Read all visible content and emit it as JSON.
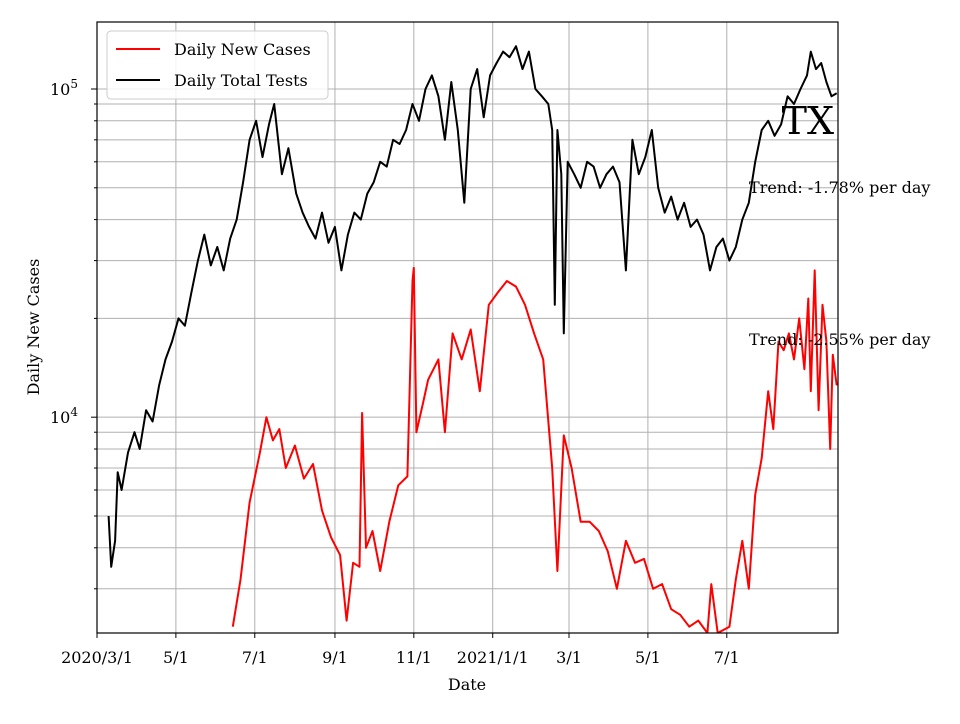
{
  "chart_data": {
    "type": "line",
    "title": "",
    "xlabel": "Date",
    "ylabel": "Daily New Cases",
    "yscale": "log",
    "ylim": [
      2200,
      160000
    ],
    "grid": true,
    "legend_position": "top-left",
    "plot_label": "TX",
    "x_ticks": [
      "2020/3/1",
      "5/1",
      "7/1",
      "9/1",
      "11/1",
      "2021/1/1",
      "3/1",
      "5/1",
      "7/1"
    ],
    "y_ticks": [
      {
        "value": 10000,
        "mantissa": "10",
        "exponent": "4"
      },
      {
        "value": 100000,
        "mantissa": "10",
        "exponent": "5"
      }
    ],
    "annotations": [
      "Trend: -1.78% per day",
      "Trend: -2.55% per day"
    ],
    "series": [
      {
        "name": "Daily New Cases",
        "color": "#ff0000",
        "points": [
          [
            "2020/6/14",
            2300
          ],
          [
            "2020/6/20",
            3200
          ],
          [
            "2020/6/27",
            5500
          ],
          [
            "2020/7/5",
            7800
          ],
          [
            "2020/7/10",
            10000
          ],
          [
            "2020/7/15",
            8500
          ],
          [
            "2020/7/20",
            9200
          ],
          [
            "2020/7/25",
            7000
          ],
          [
            "2020/8/1",
            8200
          ],
          [
            "2020/8/8",
            6500
          ],
          [
            "2020/8/15",
            7200
          ],
          [
            "2020/8/22",
            5200
          ],
          [
            "2020/8/29",
            4300
          ],
          [
            "2020/9/5",
            3800
          ],
          [
            "2020/9/10",
            2400
          ],
          [
            "2020/9/15",
            3600
          ],
          [
            "2020/9/20",
            3500
          ],
          [
            "2020/9/22",
            10300
          ],
          [
            "2020/9/25",
            4000
          ],
          [
            "2020/9/30",
            4500
          ],
          [
            "2020/10/6",
            3400
          ],
          [
            "2020/10/13",
            4800
          ],
          [
            "2020/10/20",
            6200
          ],
          [
            "2020/10/27",
            6600
          ],
          [
            "2020/10/31",
            26000
          ],
          [
            "2020/11/1",
            28500
          ],
          [
            "2020/11/3",
            9000
          ],
          [
            "2020/11/8",
            11000
          ],
          [
            "2020/11/12",
            13000
          ],
          [
            "2020/11/20",
            15000
          ],
          [
            "2020/11/25",
            9000
          ],
          [
            "2020/12/1",
            18000
          ],
          [
            "2020/12/8",
            15000
          ],
          [
            "2020/12/15",
            18500
          ],
          [
            "2020/12/22",
            12000
          ],
          [
            "2020/12/29",
            22000
          ],
          [
            "2021/1/5",
            24000
          ],
          [
            "2021/1/12",
            26000
          ],
          [
            "2021/1/19",
            25000
          ],
          [
            "2021/1/26",
            22000
          ],
          [
            "2021/2/2",
            18000
          ],
          [
            "2021/2/9",
            15000
          ],
          [
            "2021/2/16",
            7000
          ],
          [
            "2021/2/20",
            3400
          ],
          [
            "2021/2/25",
            8800
          ],
          [
            "2021/3/3",
            7000
          ],
          [
            "2021/3/10",
            4800
          ],
          [
            "2021/3/17",
            4800
          ],
          [
            "2021/3/24",
            4500
          ],
          [
            "2021/3/31",
            3900
          ],
          [
            "2021/4/7",
            3000
          ],
          [
            "2021/4/14",
            4200
          ],
          [
            "2021/4/21",
            3600
          ],
          [
            "2021/4/28",
            3700
          ],
          [
            "2021/5/5",
            3000
          ],
          [
            "2021/5/12",
            3100
          ],
          [
            "2021/5/19",
            2600
          ],
          [
            "2021/5/26",
            2500
          ],
          [
            "2021/6/2",
            2300
          ],
          [
            "2021/6/9",
            2400
          ],
          [
            "2021/6/16",
            2200
          ],
          [
            "2021/6/19",
            3100
          ],
          [
            "2021/6/24",
            2200
          ],
          [
            "2021/7/3",
            2300
          ],
          [
            "2021/7/8",
            3200
          ],
          [
            "2021/7/13",
            4200
          ],
          [
            "2021/7/18",
            3000
          ],
          [
            "2021/7/23",
            5800
          ],
          [
            "2021/7/28",
            7500
          ],
          [
            "2021/8/2",
            12000
          ],
          [
            "2021/8/6",
            9200
          ],
          [
            "2021/8/10",
            17000
          ],
          [
            "2021/8/14",
            16000
          ],
          [
            "2021/8/18",
            18000
          ],
          [
            "2021/8/22",
            15000
          ],
          [
            "2021/8/26",
            20000
          ],
          [
            "2021/8/30",
            14000
          ],
          [
            "2021/9/2",
            23000
          ],
          [
            "2021/9/4",
            12000
          ],
          [
            "2021/9/7",
            28000
          ],
          [
            "2021/9/10",
            10500
          ],
          [
            "2021/9/13",
            22000
          ],
          [
            "2021/9/16",
            17000
          ],
          [
            "2021/9/19",
            8000
          ],
          [
            "2021/9/21",
            15500
          ],
          [
            "2021/9/24",
            12500
          ]
        ]
      },
      {
        "name": "Daily Total Tests",
        "color": "#000000",
        "points": [
          [
            "2020/3/10",
            5000
          ],
          [
            "2020/3/12",
            3500
          ],
          [
            "2020/3/15",
            4200
          ],
          [
            "2020/3/17",
            6800
          ],
          [
            "2020/3/20",
            6000
          ],
          [
            "2020/3/25",
            7800
          ],
          [
            "2020/3/30",
            9000
          ],
          [
            "2020/4/3",
            8000
          ],
          [
            "2020/4/8",
            10500
          ],
          [
            "2020/4/13",
            9700
          ],
          [
            "2020/4/18",
            12500
          ],
          [
            "2020/4/23",
            15000
          ],
          [
            "2020/4/28",
            17000
          ],
          [
            "2020/5/3",
            20000
          ],
          [
            "2020/5/8",
            19000
          ],
          [
            "2020/5/13",
            24000
          ],
          [
            "2020/5/18",
            30000
          ],
          [
            "2020/5/23",
            36000
          ],
          [
            "2020/5/28",
            29000
          ],
          [
            "2020/6/2",
            33000
          ],
          [
            "2020/6/7",
            28000
          ],
          [
            "2020/6/12",
            35000
          ],
          [
            "2020/6/17",
            40000
          ],
          [
            "2020/6/22",
            52000
          ],
          [
            "2020/6/27",
            70000
          ],
          [
            "2020/7/2",
            80000
          ],
          [
            "2020/7/7",
            62000
          ],
          [
            "2020/7/12",
            78000
          ],
          [
            "2020/7/16",
            90000
          ],
          [
            "2020/7/22",
            55000
          ],
          [
            "2020/7/27",
            66000
          ],
          [
            "2020/8/2",
            48000
          ],
          [
            "2020/8/7",
            42000
          ],
          [
            "2020/8/12",
            38000
          ],
          [
            "2020/8/17",
            35000
          ],
          [
            "2020/8/22",
            42000
          ],
          [
            "2020/8/27",
            34000
          ],
          [
            "2020/9/1",
            38000
          ],
          [
            "2020/9/6",
            28000
          ],
          [
            "2020/9/11",
            36000
          ],
          [
            "2020/9/16",
            42000
          ],
          [
            "2020/9/21",
            40000
          ],
          [
            "2020/9/26",
            48000
          ],
          [
            "2020/10/1",
            52000
          ],
          [
            "2020/10/6",
            60000
          ],
          [
            "2020/10/11",
            58000
          ],
          [
            "2020/10/16",
            70000
          ],
          [
            "2020/10/21",
            68000
          ],
          [
            "2020/10/26",
            75000
          ],
          [
            "2020/10/31",
            90000
          ],
          [
            "2020/11/5",
            80000
          ],
          [
            "2020/11/10",
            100000
          ],
          [
            "2020/11/15",
            110000
          ],
          [
            "2020/11/20",
            95000
          ],
          [
            "2020/11/25",
            70000
          ],
          [
            "2020/11/30",
            105000
          ],
          [
            "2020/12/5",
            75000
          ],
          [
            "2020/12/10",
            45000
          ],
          [
            "2020/12/15",
            100000
          ],
          [
            "2020/12/20",
            115000
          ],
          [
            "2020/12/25",
            82000
          ],
          [
            "2020/12/30",
            110000
          ],
          [
            "2021/1/4",
            120000
          ],
          [
            "2021/1/9",
            130000
          ],
          [
            "2021/1/14",
            125000
          ],
          [
            "2021/1/19",
            135000
          ],
          [
            "2021/1/24",
            115000
          ],
          [
            "2021/1/29",
            130000
          ],
          [
            "2021/2/3",
            100000
          ],
          [
            "2021/2/8",
            95000
          ],
          [
            "2021/2/13",
            90000
          ],
          [
            "2021/2/16",
            75000
          ],
          [
            "2021/2/18",
            22000
          ],
          [
            "2021/2/20",
            75000
          ],
          [
            "2021/2/23",
            55000
          ],
          [
            "2021/2/25",
            18000
          ],
          [
            "2021/2/28",
            60000
          ],
          [
            "2021/3/5",
            55000
          ],
          [
            "2021/3/10",
            50000
          ],
          [
            "2021/3/15",
            60000
          ],
          [
            "2021/3/20",
            58000
          ],
          [
            "2021/3/25",
            50000
          ],
          [
            "2021/3/30",
            55000
          ],
          [
            "2021/4/4",
            58000
          ],
          [
            "2021/4/9",
            52000
          ],
          [
            "2021/4/14",
            28000
          ],
          [
            "2021/4/19",
            70000
          ],
          [
            "2021/4/24",
            55000
          ],
          [
            "2021/4/29",
            62000
          ],
          [
            "2021/5/4",
            75000
          ],
          [
            "2021/5/9",
            50000
          ],
          [
            "2021/5/14",
            42000
          ],
          [
            "2021/5/19",
            47000
          ],
          [
            "2021/5/24",
            40000
          ],
          [
            "2021/5/29",
            45000
          ],
          [
            "2021/6/3",
            38000
          ],
          [
            "2021/6/8",
            40000
          ],
          [
            "2021/6/13",
            36000
          ],
          [
            "2021/6/18",
            28000
          ],
          [
            "2021/6/23",
            33000
          ],
          [
            "2021/6/28",
            35000
          ],
          [
            "2021/7/3",
            30000
          ],
          [
            "2021/7/8",
            33000
          ],
          [
            "2021/7/13",
            40000
          ],
          [
            "2021/7/18",
            45000
          ],
          [
            "2021/7/23",
            60000
          ],
          [
            "2021/7/28",
            75000
          ],
          [
            "2021/8/2",
            80000
          ],
          [
            "2021/8/7",
            72000
          ],
          [
            "2021/8/12",
            78000
          ],
          [
            "2021/8/17",
            95000
          ],
          [
            "2021/8/22",
            90000
          ],
          [
            "2021/8/27",
            100000
          ],
          [
            "2021/9/1",
            110000
          ],
          [
            "2021/9/4",
            130000
          ],
          [
            "2021/9/8",
            115000
          ],
          [
            "2021/9/12",
            120000
          ],
          [
            "2021/9/16",
            105000
          ],
          [
            "2021/9/20",
            95000
          ],
          [
            "2021/9/24",
            97000
          ]
        ]
      }
    ]
  }
}
